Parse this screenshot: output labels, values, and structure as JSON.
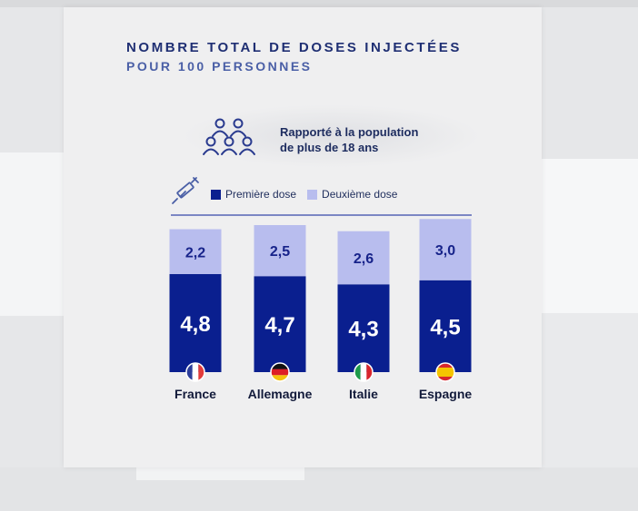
{
  "colors": {
    "first_dose": "#0a1f8f",
    "second_dose": "#b8bdee",
    "first_label": "#ffffff",
    "second_label": "#17238a",
    "title": "#1f2f73"
  },
  "icons": [
    "people-icon",
    "syringe-icon",
    "flag-france-icon",
    "flag-germany-icon",
    "flag-italy-icon",
    "flag-spain-icon"
  ],
  "note": {
    "line1": "Rapporté à la population",
    "line2": "de plus de 18 ans"
  },
  "chart_data": {
    "type": "bar",
    "stacked": true,
    "title": "NOMBRE TOTAL DE DOSES INJECTÉES",
    "subtitle": "POUR 100 PERSONNES",
    "categories": [
      "France",
      "Allemagne",
      "Italie",
      "Espagne"
    ],
    "series": [
      {
        "name": "Première dose",
        "values": [
          4.8,
          4.7,
          4.3,
          4.5
        ],
        "labels": [
          "4,8",
          "4,7",
          "4,3",
          "4,5"
        ]
      },
      {
        "name": "Deuxième dose",
        "values": [
          2.2,
          2.5,
          2.6,
          3.0
        ],
        "labels": [
          "2,2",
          "2,5",
          "2,6",
          "3,0"
        ]
      }
    ],
    "xlabel": "",
    "ylabel": "",
    "ylim": [
      0,
      7.5
    ],
    "legend": "top"
  }
}
